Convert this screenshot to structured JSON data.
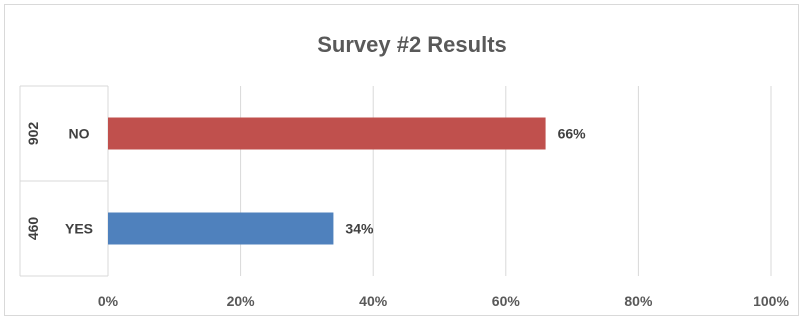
{
  "chart_data": {
    "type": "bar",
    "orientation": "horizontal",
    "title": "Survey #2 Results",
    "categories": [
      "NO",
      "YES"
    ],
    "group_labels": [
      "902",
      "460"
    ],
    "values": [
      66,
      34
    ],
    "data_labels": [
      "66%",
      "34%"
    ],
    "colors": [
      "#C0504D",
      "#4F81BD"
    ],
    "xlim": [
      0,
      100
    ],
    "x_ticks": [
      0,
      20,
      40,
      60,
      80,
      100
    ],
    "x_tick_labels": [
      "0%",
      "20%",
      "40%",
      "60%",
      "80%",
      "100%"
    ],
    "grid": true,
    "legend": "none"
  }
}
